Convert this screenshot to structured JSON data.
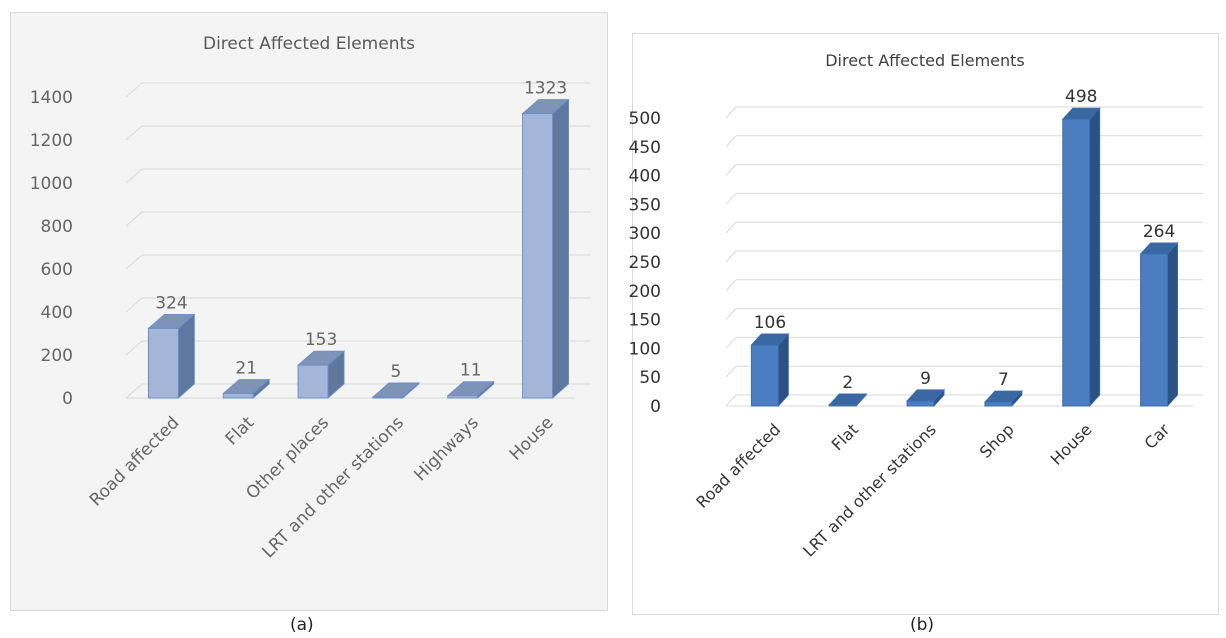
{
  "captions": [
    "(a)",
    "(b)"
  ],
  "chart_data": [
    {
      "type": "bar",
      "title": "Direct Affected Elements",
      "categories": [
        "Road affected",
        "Flat",
        "Other places",
        "LRT and other stations",
        "Highways",
        "House"
      ],
      "values": [
        324,
        21,
        153,
        5,
        11,
        1323
      ],
      "data_labels": [
        "324",
        "21",
        "153",
        "5",
        "11",
        "1323"
      ],
      "ylim": [
        0,
        1400
      ],
      "yticks": [
        0,
        200,
        400,
        600,
        800,
        1000,
        1200,
        1400
      ],
      "grid": true,
      "legend": "none",
      "colors": {
        "front": "#a3b6da",
        "top": "#7d93b8",
        "side": "#5f789f",
        "edge": "#6e8fc6",
        "text": "#666666",
        "title": "#595959"
      }
    },
    {
      "type": "bar",
      "title": "Direct Affected Elements",
      "categories": [
        "Road affected",
        "Flat",
        "LRT and other stations",
        "Shop",
        "House",
        "Car"
      ],
      "values": [
        106,
        2,
        9,
        7,
        498,
        264
      ],
      "data_labels": [
        "106",
        "2",
        "9",
        "7",
        "498",
        "264"
      ],
      "ylim": [
        0,
        500
      ],
      "yticks": [
        0,
        50,
        100,
        150,
        200,
        250,
        300,
        350,
        400,
        450,
        500
      ],
      "grid": true,
      "legend": "none",
      "colors": {
        "front": "#4a7ec0",
        "top": "#3a66a2",
        "side": "#2c5283",
        "edge": "#3d6eae",
        "text": "#333333",
        "title": "#404040"
      }
    }
  ]
}
